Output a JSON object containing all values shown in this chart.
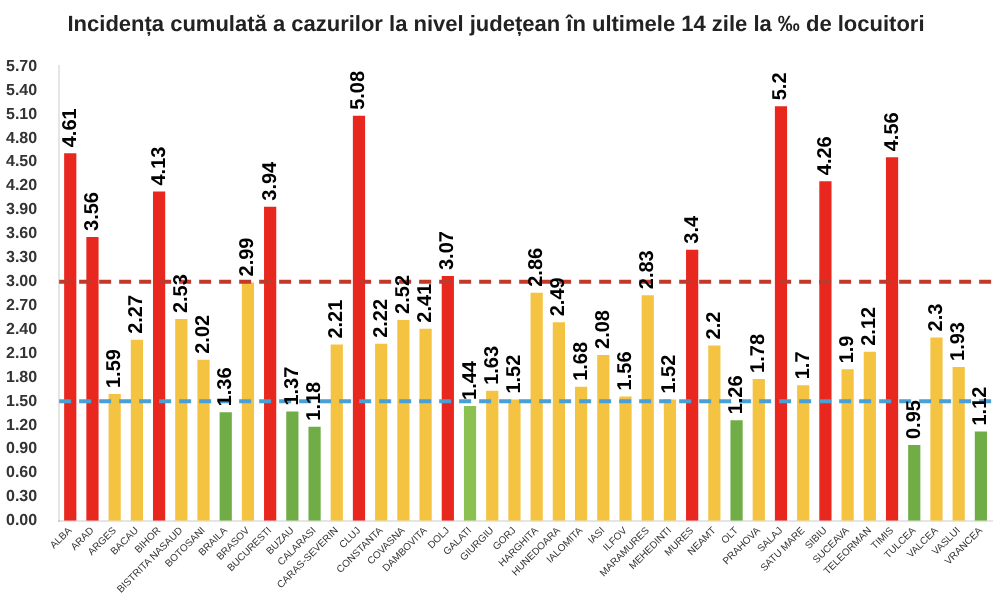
{
  "chart_data": {
    "type": "bar",
    "title": "Incidența cumulată a cazurilor la nivel județean în ultimele 14 zile la ‰ de locuitori",
    "categories": [
      "ALBA",
      "ARAD",
      "ARGES",
      "BACAU",
      "BIHOR",
      "BISTRITA NASAUD",
      "BOTOSANI",
      "BRAILA",
      "BRASOV",
      "BUCURESTI",
      "BUZAU",
      "CALARASI",
      "CARAS-SEVERIN",
      "CLUJ",
      "CONSTANTA",
      "COVASNA",
      "DAMBOVITA",
      "DOLJ",
      "GALATI",
      "GIURGIU",
      "GORJ",
      "HARGHITA",
      "HUNEDOARA",
      "IALOMITA",
      "IASI",
      "ILFOV",
      "MARAMURES",
      "MEHEDINTI",
      "MURES",
      "NEAMT",
      "OLT",
      "PRAHOVA",
      "SALAJ",
      "SATU MARE",
      "SIBIU",
      "SUCEAVA",
      "TELEORMAN",
      "TIMIS",
      "TULCEA",
      "VALCEA",
      "VASLUI",
      "VRANCEA"
    ],
    "values": [
      4.61,
      3.56,
      1.59,
      2.27,
      4.13,
      2.53,
      2.02,
      1.36,
      2.99,
      3.94,
      1.37,
      1.18,
      2.21,
      5.08,
      2.22,
      2.52,
      2.41,
      3.07,
      1.44,
      1.63,
      1.52,
      2.86,
      2.49,
      1.68,
      2.08,
      1.56,
      2.83,
      1.52,
      3.4,
      2.2,
      1.26,
      1.78,
      5.2,
      1.7,
      4.26,
      1.9,
      2.12,
      4.56,
      0.95,
      2.3,
      1.93,
      1.12
    ],
    "colors": [
      "#e8271f",
      "#e8271f",
      "#f5c342",
      "#f5c342",
      "#e8271f",
      "#f5c342",
      "#f5c342",
      "#70ad47",
      "#f5c342",
      "#e8271f",
      "#70ad47",
      "#70ad47",
      "#f5c342",
      "#e8271f",
      "#f5c342",
      "#f5c342",
      "#f5c342",
      "#e8271f",
      "#8cc152",
      "#f5c342",
      "#f5c342",
      "#f5c342",
      "#f5c342",
      "#f5c342",
      "#f5c342",
      "#f5c342",
      "#f5c342",
      "#f5c342",
      "#e8271f",
      "#f5c342",
      "#70ad47",
      "#f5c342",
      "#e8271f",
      "#f5c342",
      "#e8271f",
      "#f5c342",
      "#f5c342",
      "#e8271f",
      "#70ad47",
      "#f5c342",
      "#f5c342",
      "#70ad47"
    ],
    "ylim": [
      0,
      5.7
    ],
    "yticks": [
      {
        "value": 0,
        "label": "0.00"
      },
      {
        "value": 0.3,
        "label": "0.30"
      },
      {
        "value": 0.6,
        "label": "0.60"
      },
      {
        "value": 0.9,
        "label": "0.90"
      },
      {
        "value": 1.2,
        "label": "1.20"
      },
      {
        "value": 1.5,
        "label": "1.50"
      },
      {
        "value": 1.8,
        "label": "1.80"
      },
      {
        "value": 2.1,
        "label": "2.10"
      },
      {
        "value": 2.4,
        "label": "2.40"
      },
      {
        "value": 2.7,
        "label": "2.70"
      },
      {
        "value": 3,
        "label": "3.00"
      },
      {
        "value": 3.3,
        "label": "3.30"
      },
      {
        "value": 3.6,
        "label": "3.60"
      },
      {
        "value": 3.9,
        "label": "3.90"
      },
      {
        "value": 4.2,
        "label": "4.20"
      },
      {
        "value": 4.5,
        "label": "4.50"
      },
      {
        "value": 4.8,
        "label": "4.80"
      },
      {
        "value": 5.1,
        "label": "5.10"
      },
      {
        "value": 5.4,
        "label": "5.40"
      },
      {
        "value": 5.7,
        "label": "5.70"
      }
    ],
    "ref_lines": [
      {
        "axis": "y",
        "value": 3,
        "color": "#c0392b",
        "line_style": "dashed"
      },
      {
        "axis": "y",
        "value": 1.5,
        "color": "#4a9fd5",
        "line_style": "dashed"
      }
    ],
    "data_labels": true,
    "grid": false,
    "legend": false
  }
}
